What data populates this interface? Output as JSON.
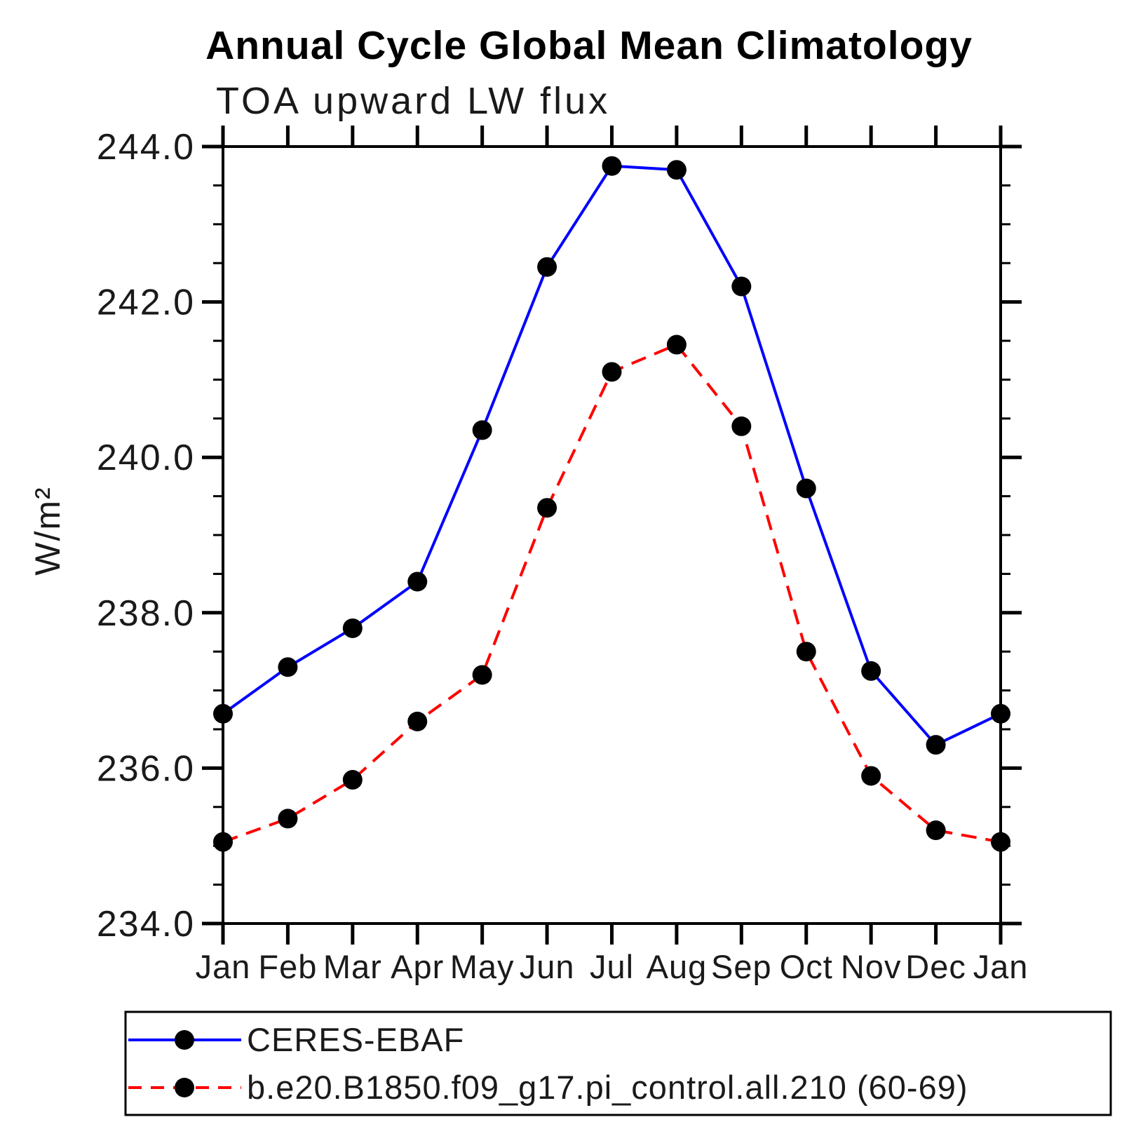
{
  "chart_data": {
    "type": "line",
    "title": "Annual Cycle Global Mean Climatology",
    "subtitle": "TOA upward LW flux",
    "ylabel": "W/m²",
    "x_categories": [
      "Jan",
      "Feb",
      "Mar",
      "Apr",
      "May",
      "Jun",
      "Jul",
      "Aug",
      "Sep",
      "Oct",
      "Nov",
      "Dec",
      "Jan"
    ],
    "ylim": [
      234.0,
      244.0
    ],
    "y_major_step": 2.0,
    "y_minor_step": 0.5,
    "grid": false,
    "legend_position": "bottom",
    "marker": {
      "shape": "circle",
      "color": "#000000"
    },
    "frame_color": "#000000",
    "series": [
      {
        "name": "CERES-EBAF",
        "color": "#0000ff",
        "style": "solid",
        "values": [
          236.7,
          237.3,
          237.8,
          238.4,
          240.35,
          242.45,
          243.75,
          243.7,
          242.2,
          239.6,
          237.25,
          236.3,
          236.7
        ]
      },
      {
        "name": "b.e20.B1850.f09_g17.pi_control.all.210 (60-69)",
        "color": "#ff0000",
        "style": "dashed",
        "values": [
          235.05,
          235.35,
          235.85,
          236.6,
          237.2,
          239.35,
          241.1,
          241.45,
          240.4,
          237.5,
          235.9,
          235.2,
          235.05
        ]
      }
    ]
  }
}
